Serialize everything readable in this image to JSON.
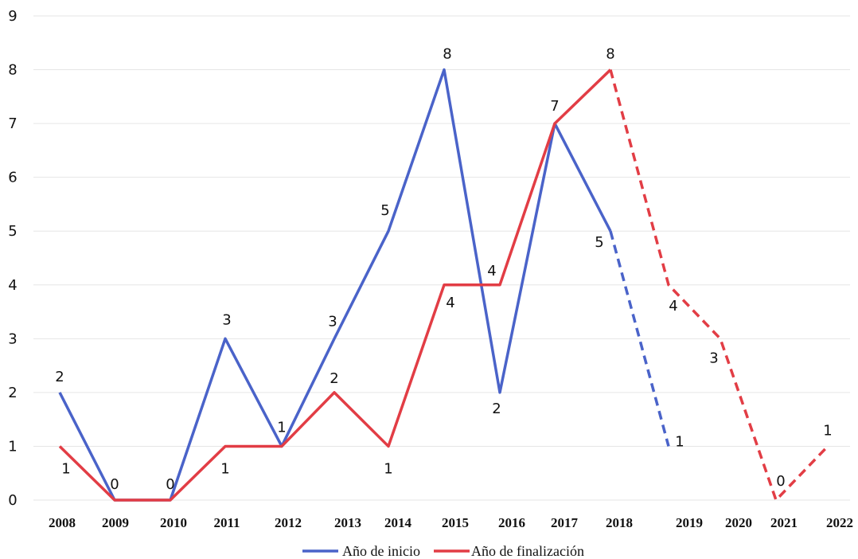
{
  "chart_data": {
    "type": "line",
    "title": "",
    "xlabel": "",
    "ylabel": "",
    "ylim": [
      0,
      9
    ],
    "yticks": [
      "0",
      "1",
      "2",
      "3",
      "4",
      "5",
      "6",
      "7",
      "8",
      "9"
    ],
    "grid": true,
    "legend_placement": "bottom",
    "categories": [
      "2008",
      "2009",
      "2010",
      "2011",
      "2012",
      "2013",
      "2014",
      "2015",
      "2016",
      "2017",
      "2018",
      "2019",
      "2020",
      "2021",
      "2022"
    ],
    "series": [
      {
        "name": "Año de inicio",
        "color": "#4a63c9",
        "points": [
          {
            "x": 0,
            "y": 2,
            "label": "2"
          },
          {
            "x": 1,
            "y": 0,
            "label": "0"
          },
          {
            "x": 2,
            "y": 0,
            "label": "0"
          },
          {
            "x": 3,
            "y": 3,
            "label": "3"
          },
          {
            "x": 4,
            "y": 1,
            "label": "1"
          },
          {
            "x": 5,
            "y": 3,
            "label": "3"
          },
          {
            "x": 6,
            "y": 5,
            "label": "5"
          },
          {
            "x": 7,
            "y": 8,
            "label": "8"
          },
          {
            "x": 8,
            "y": 2,
            "label": "2"
          },
          {
            "x": 9,
            "y": 7,
            "label": "7"
          },
          {
            "x": 10,
            "y": 5,
            "label": "5"
          },
          {
            "x": 11,
            "y": 1,
            "label": "1"
          }
        ],
        "dashed_from_index": 10
      },
      {
        "name": "Año de finalización",
        "color": "#e23d45",
        "points": [
          {
            "x": 0,
            "y": 1,
            "label": "1"
          },
          {
            "x": 1,
            "y": 0,
            "label": ""
          },
          {
            "x": 2,
            "y": 0,
            "label": ""
          },
          {
            "x": 3,
            "y": 1,
            "label": "1"
          },
          {
            "x": 4,
            "y": 1,
            "label": ""
          },
          {
            "x": 5,
            "y": 2,
            "label": "2"
          },
          {
            "x": 6,
            "y": 1,
            "label": "1"
          },
          {
            "x": 7,
            "y": 4,
            "label": "4"
          },
          {
            "x": 8,
            "y": 4,
            "label": "4"
          },
          {
            "x": 9,
            "y": 7,
            "label": ""
          },
          {
            "x": 10,
            "y": 8,
            "label": "8"
          },
          {
            "x": 11,
            "y": 4,
            "label": "4"
          },
          {
            "x": 12,
            "y": 3,
            "label": "3"
          },
          {
            "x": 13,
            "y": 0,
            "label": "0"
          },
          {
            "x": 14,
            "y": 1,
            "label": "1"
          }
        ],
        "dashed_from_index": 10
      }
    ]
  }
}
